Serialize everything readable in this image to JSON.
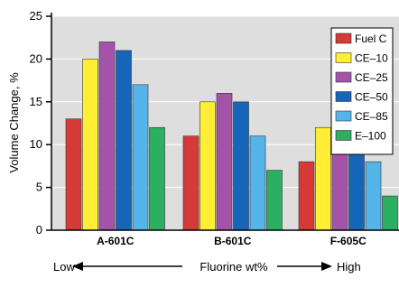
{
  "chart_data": {
    "type": "bar",
    "ylabel": "Volume Change, %",
    "ylim": [
      0,
      25
    ],
    "yticks": [
      0,
      5,
      10,
      15,
      20,
      25
    ],
    "grid": "horizontal",
    "legend_position": "top-right",
    "categories": [
      "A-601C",
      "B-601C",
      "F-605C"
    ],
    "series": [
      {
        "name": "Fuel C",
        "color": "#d63a36",
        "values": [
          13,
          11,
          8
        ]
      },
      {
        "name": "CE–10",
        "color": "#ffee33",
        "values": [
          20,
          15,
          12
        ]
      },
      {
        "name": "CE–25",
        "color": "#a354a8",
        "values": [
          22,
          16,
          11
        ]
      },
      {
        "name": "CE–50",
        "color": "#1565b8",
        "values": [
          21,
          15,
          10
        ]
      },
      {
        "name": "CE–85",
        "color": "#55b4e8",
        "values": [
          17,
          11,
          8
        ]
      },
      {
        "name": "E–100",
        "color": "#2bb062",
        "values": [
          12,
          7,
          4
        ]
      }
    ],
    "annotation": {
      "left": "Low",
      "center": "Fluorine wt%",
      "right": "High"
    }
  },
  "colors": {
    "plot_background": "#dedede",
    "axis": "#000000",
    "grid": "#ffffff"
  }
}
